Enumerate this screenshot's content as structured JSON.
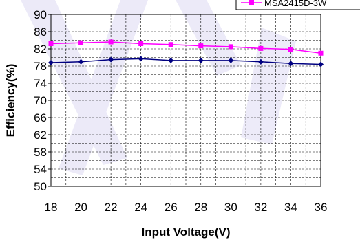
{
  "chart_data": {
    "type": "line",
    "title": "",
    "xlabel": "Input Voltage(V)",
    "ylabel": "Efficiency(%)",
    "x": [
      18,
      20,
      22,
      24,
      26,
      28,
      30,
      32,
      34,
      36
    ],
    "xlim": [
      18,
      36
    ],
    "ylim": [
      50,
      90
    ],
    "yticks": [
      50,
      54,
      58,
      62,
      66,
      70,
      74,
      78,
      82,
      86,
      90
    ],
    "grid": true,
    "legend_position": "top-right",
    "series": [
      {
        "name": "MSA2415D-3W",
        "color": "#ff00ff",
        "marker": "square",
        "values": [
          83.2,
          83.4,
          83.6,
          83.2,
          83.0,
          82.7,
          82.5,
          82.1,
          81.9,
          81.0
        ]
      },
      {
        "color": "#000080",
        "marker": "diamond",
        "values": [
          78.8,
          79.0,
          79.5,
          79.7,
          79.3,
          79.3,
          79.3,
          79.0,
          78.6,
          78.4
        ]
      }
    ]
  }
}
